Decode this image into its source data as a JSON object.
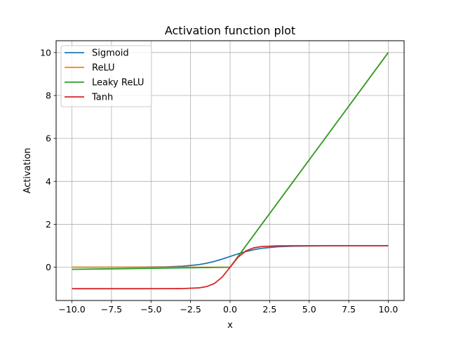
{
  "chart_data": {
    "type": "line",
    "title": "Activation function plot",
    "xlabel": "x",
    "ylabel": "Activation",
    "xlim": [
      -11.0,
      11.0
    ],
    "ylim": [
      -1.55,
      10.55
    ],
    "xticks": [
      -10.0,
      -7.5,
      -5.0,
      -2.5,
      0.0,
      2.5,
      5.0,
      7.5,
      10.0
    ],
    "xtick_labels": [
      "−10.0",
      "−7.5",
      "−5.0",
      "−2.5",
      "0.0",
      "2.5",
      "5.0",
      "7.5",
      "10.0"
    ],
    "yticks": [
      0,
      2,
      4,
      6,
      8,
      10
    ],
    "ytick_labels": [
      "0",
      "2",
      "4",
      "6",
      "8",
      "10"
    ],
    "grid": true,
    "legend_position": "top-left",
    "x": [
      -10,
      -8,
      -6,
      -4,
      -3,
      -2,
      -1.5,
      -1,
      -0.5,
      0,
      0.5,
      1,
      1.5,
      2,
      3,
      4,
      6,
      8,
      10
    ],
    "series": [
      {
        "name": "Sigmoid",
        "color": "#1f77b4",
        "values": [
          5e-05,
          0.0003,
          0.0025,
          0.018,
          0.047,
          0.119,
          0.182,
          0.269,
          0.378,
          0.5,
          0.622,
          0.731,
          0.818,
          0.881,
          0.953,
          0.982,
          0.9975,
          0.9997,
          0.99995
        ]
      },
      {
        "name": "ReLU",
        "color": "#ff7f0e",
        "values": [
          0,
          0,
          0,
          0,
          0,
          0,
          0,
          0,
          0,
          0,
          0.5,
          1,
          1.5,
          2,
          3,
          4,
          6,
          8,
          10
        ]
      },
      {
        "name": "Leaky ReLU",
        "color": "#2ca02c",
        "values": [
          -0.1,
          -0.08,
          -0.06,
          -0.04,
          -0.03,
          -0.02,
          -0.015,
          -0.01,
          -0.005,
          0,
          0.5,
          1,
          1.5,
          2,
          3,
          4,
          6,
          8,
          10
        ]
      },
      {
        "name": "Tanh",
        "color": "#d62728",
        "values": [
          -1.0,
          -1.0,
          -1.0,
          -0.9993,
          -0.995,
          -0.964,
          -0.905,
          -0.762,
          -0.462,
          0,
          0.462,
          0.762,
          0.905,
          0.964,
          0.995,
          0.9993,
          1.0,
          1.0,
          1.0
        ]
      }
    ]
  }
}
